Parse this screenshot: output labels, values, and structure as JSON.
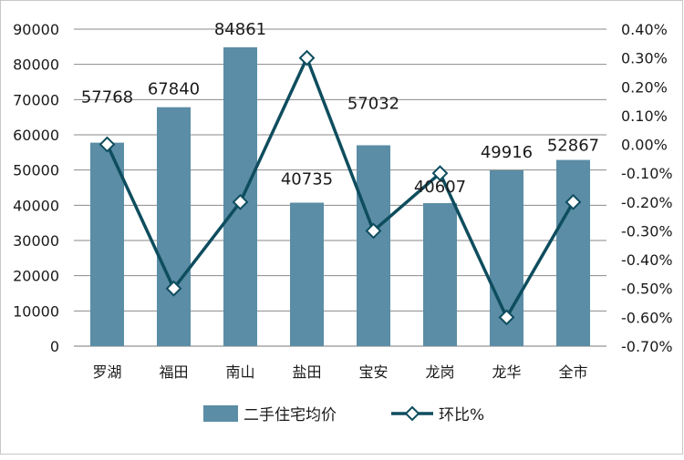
{
  "chart_data": {
    "type": "bar",
    "categories": [
      "罗湖",
      "福田",
      "南山",
      "盐田",
      "宝安",
      "龙岗",
      "龙华",
      "全市"
    ],
    "series": [
      {
        "name": "二手住宅均价",
        "type": "bar",
        "axis": "left",
        "values": [
          57768,
          67840,
          84861,
          40735,
          57032,
          40607,
          49916,
          52867
        ],
        "color": "#5b8da6"
      },
      {
        "name": "环比%",
        "type": "line",
        "axis": "right",
        "values": [
          0.0,
          -0.5,
          -0.2,
          0.3,
          -0.3,
          -0.1,
          -0.6,
          -0.2
        ],
        "unit": "%",
        "color": "#0e4d5e"
      }
    ],
    "data_labels": [
      "57768",
      "67840",
      "84861",
      "40735",
      "57032",
      "40607",
      "49916",
      "52867"
    ],
    "y_left": {
      "min": 0,
      "max": 90000,
      "step": 10000,
      "ticks": [
        "0",
        "10000",
        "20000",
        "30000",
        "40000",
        "50000",
        "60000",
        "70000",
        "80000",
        "90000"
      ]
    },
    "y_right": {
      "min": -0.7,
      "max": 0.4,
      "step": 0.1,
      "ticks": [
        "0.40%",
        "0.30%",
        "0.20%",
        "0.10%",
        "0.00%",
        "-0.10%",
        "-0.20%",
        "-0.30%",
        "-0.40%",
        "-0.50%",
        "-0.60%",
        "-0.70%"
      ]
    },
    "grid": true,
    "legend": {
      "position": "bottom",
      "items": [
        "二手住宅均价",
        "环比%"
      ]
    },
    "title": "",
    "xlabel": "",
    "ylabel": ""
  }
}
